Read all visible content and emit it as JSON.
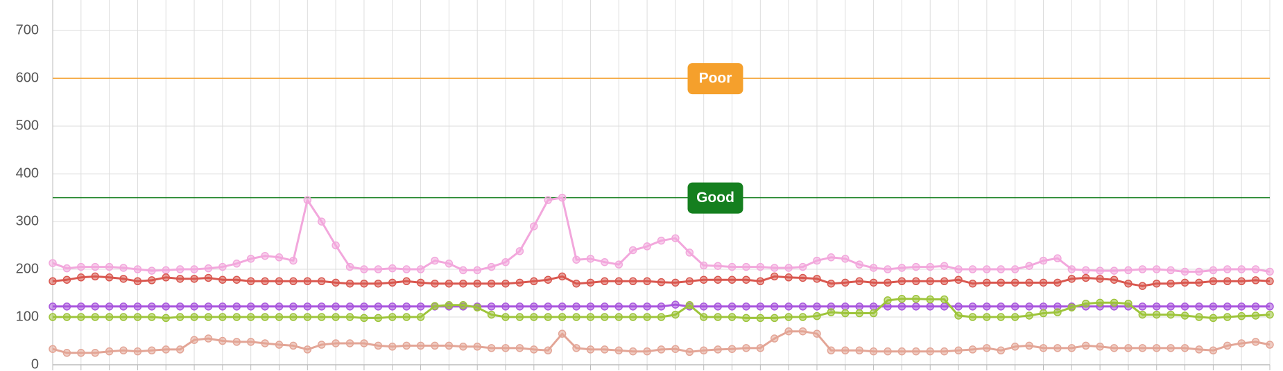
{
  "chart_data": {
    "type": "line",
    "ylim": [
      0,
      764
    ],
    "yticks": [
      0,
      100,
      200,
      300,
      400,
      500,
      600,
      700
    ],
    "grid": true,
    "thresholds": [
      {
        "label": "Poor",
        "value": 600,
        "color": "#f5a02c"
      },
      {
        "label": "Good",
        "value": 350,
        "color": "#157f1f"
      }
    ],
    "series": [
      {
        "color": "#f2a7dc",
        "values": [
          213,
          202,
          205,
          205,
          205,
          203,
          200,
          197,
          198,
          200,
          200,
          202,
          205,
          212,
          222,
          228,
          225,
          218,
          345,
          300,
          250,
          205,
          200,
          200,
          202,
          200,
          200,
          218,
          212,
          198,
          198,
          205,
          215,
          238,
          290,
          345,
          350,
          220,
          222,
          215,
          210,
          240,
          248,
          260,
          265,
          235,
          208,
          207,
          205,
          205,
          205,
          203,
          203,
          205,
          218,
          225,
          222,
          210,
          203,
          200,
          203,
          205,
          205,
          207,
          200,
          200,
          200,
          200,
          200,
          207,
          218,
          223,
          200,
          198,
          197,
          197,
          198,
          200,
          200,
          198,
          195,
          195,
          198,
          200,
          200,
          200,
          195
        ]
      },
      {
        "color": "#d9574f",
        "values": [
          175,
          178,
          183,
          185,
          183,
          180,
          175,
          177,
          183,
          180,
          180,
          182,
          178,
          178,
          175,
          175,
          175,
          175,
          175,
          175,
          172,
          170,
          170,
          170,
          172,
          175,
          172,
          170,
          170,
          170,
          170,
          170,
          170,
          172,
          175,
          178,
          185,
          170,
          172,
          175,
          175,
          175,
          175,
          173,
          172,
          175,
          178,
          178,
          178,
          178,
          175,
          185,
          183,
          182,
          180,
          170,
          172,
          175,
          172,
          172,
          175,
          175,
          175,
          175,
          178,
          170,
          172,
          172,
          172,
          172,
          172,
          172,
          180,
          182,
          180,
          178,
          170,
          165,
          170,
          170,
          172,
          172,
          175,
          175,
          175,
          177,
          175
        ]
      },
      {
        "color": "#a855dd",
        "values": [
          122,
          122,
          122,
          122,
          122,
          122,
          122,
          122,
          122,
          122,
          122,
          122,
          122,
          122,
          122,
          122,
          122,
          122,
          122,
          122,
          122,
          122,
          122,
          122,
          122,
          122,
          122,
          122,
          122,
          122,
          122,
          122,
          122,
          122,
          122,
          122,
          122,
          122,
          122,
          122,
          122,
          122,
          122,
          122,
          126,
          122,
          122,
          122,
          122,
          122,
          122,
          122,
          122,
          122,
          122,
          122,
          122,
          122,
          122,
          122,
          122,
          122,
          122,
          122,
          122,
          122,
          122,
          122,
          122,
          122,
          122,
          122,
          122,
          122,
          122,
          122,
          122,
          122,
          122,
          122,
          122,
          122,
          122,
          122,
          122,
          122,
          122
        ]
      },
      {
        "color": "#9dc43a",
        "values": [
          100,
          100,
          100,
          100,
          100,
          100,
          100,
          100,
          98,
          100,
          100,
          100,
          100,
          100,
          100,
          100,
          100,
          100,
          100,
          100,
          100,
          100,
          98,
          98,
          100,
          100,
          100,
          123,
          125,
          125,
          120,
          105,
          100,
          100,
          100,
          100,
          100,
          100,
          100,
          100,
          100,
          100,
          100,
          100,
          105,
          125,
          100,
          100,
          100,
          98,
          98,
          98,
          100,
          100,
          102,
          110,
          108,
          108,
          108,
          135,
          138,
          138,
          137,
          137,
          103,
          100,
          100,
          100,
          100,
          103,
          108,
          110,
          120,
          128,
          130,
          130,
          128,
          105,
          105,
          105,
          103,
          100,
          98,
          100,
          102,
          103,
          105
        ]
      },
      {
        "color": "#e3a596",
        "values": [
          33,
          25,
          25,
          25,
          28,
          30,
          28,
          30,
          32,
          32,
          52,
          55,
          50,
          48,
          48,
          45,
          42,
          40,
          32,
          42,
          45,
          45,
          45,
          40,
          38,
          40,
          40,
          40,
          40,
          38,
          38,
          35,
          35,
          35,
          32,
          30,
          65,
          35,
          32,
          32,
          30,
          28,
          28,
          32,
          33,
          27,
          30,
          32,
          33,
          35,
          35,
          55,
          70,
          70,
          65,
          30,
          30,
          30,
          28,
          28,
          28,
          28,
          28,
          28,
          30,
          32,
          35,
          30,
          38,
          40,
          35,
          35,
          35,
          40,
          38,
          35,
          35,
          35,
          35,
          35,
          35,
          32,
          30,
          40,
          45,
          48,
          42
        ]
      }
    ]
  }
}
